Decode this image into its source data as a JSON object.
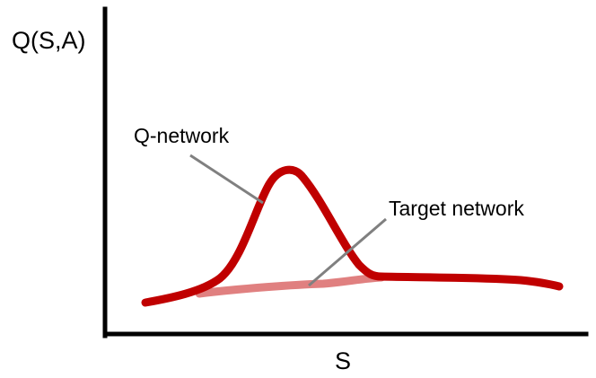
{
  "y_axis_label": "Q(S,A)",
  "x_axis_label": "S",
  "annotations": {
    "q_network": "Q-network",
    "target_network": "Target network"
  },
  "colors": {
    "background": "#ffffff",
    "axes": "#000000",
    "q_network_curve": "#c00000",
    "target_network_curve": "#e08080",
    "leader_lines": "#808080"
  }
}
